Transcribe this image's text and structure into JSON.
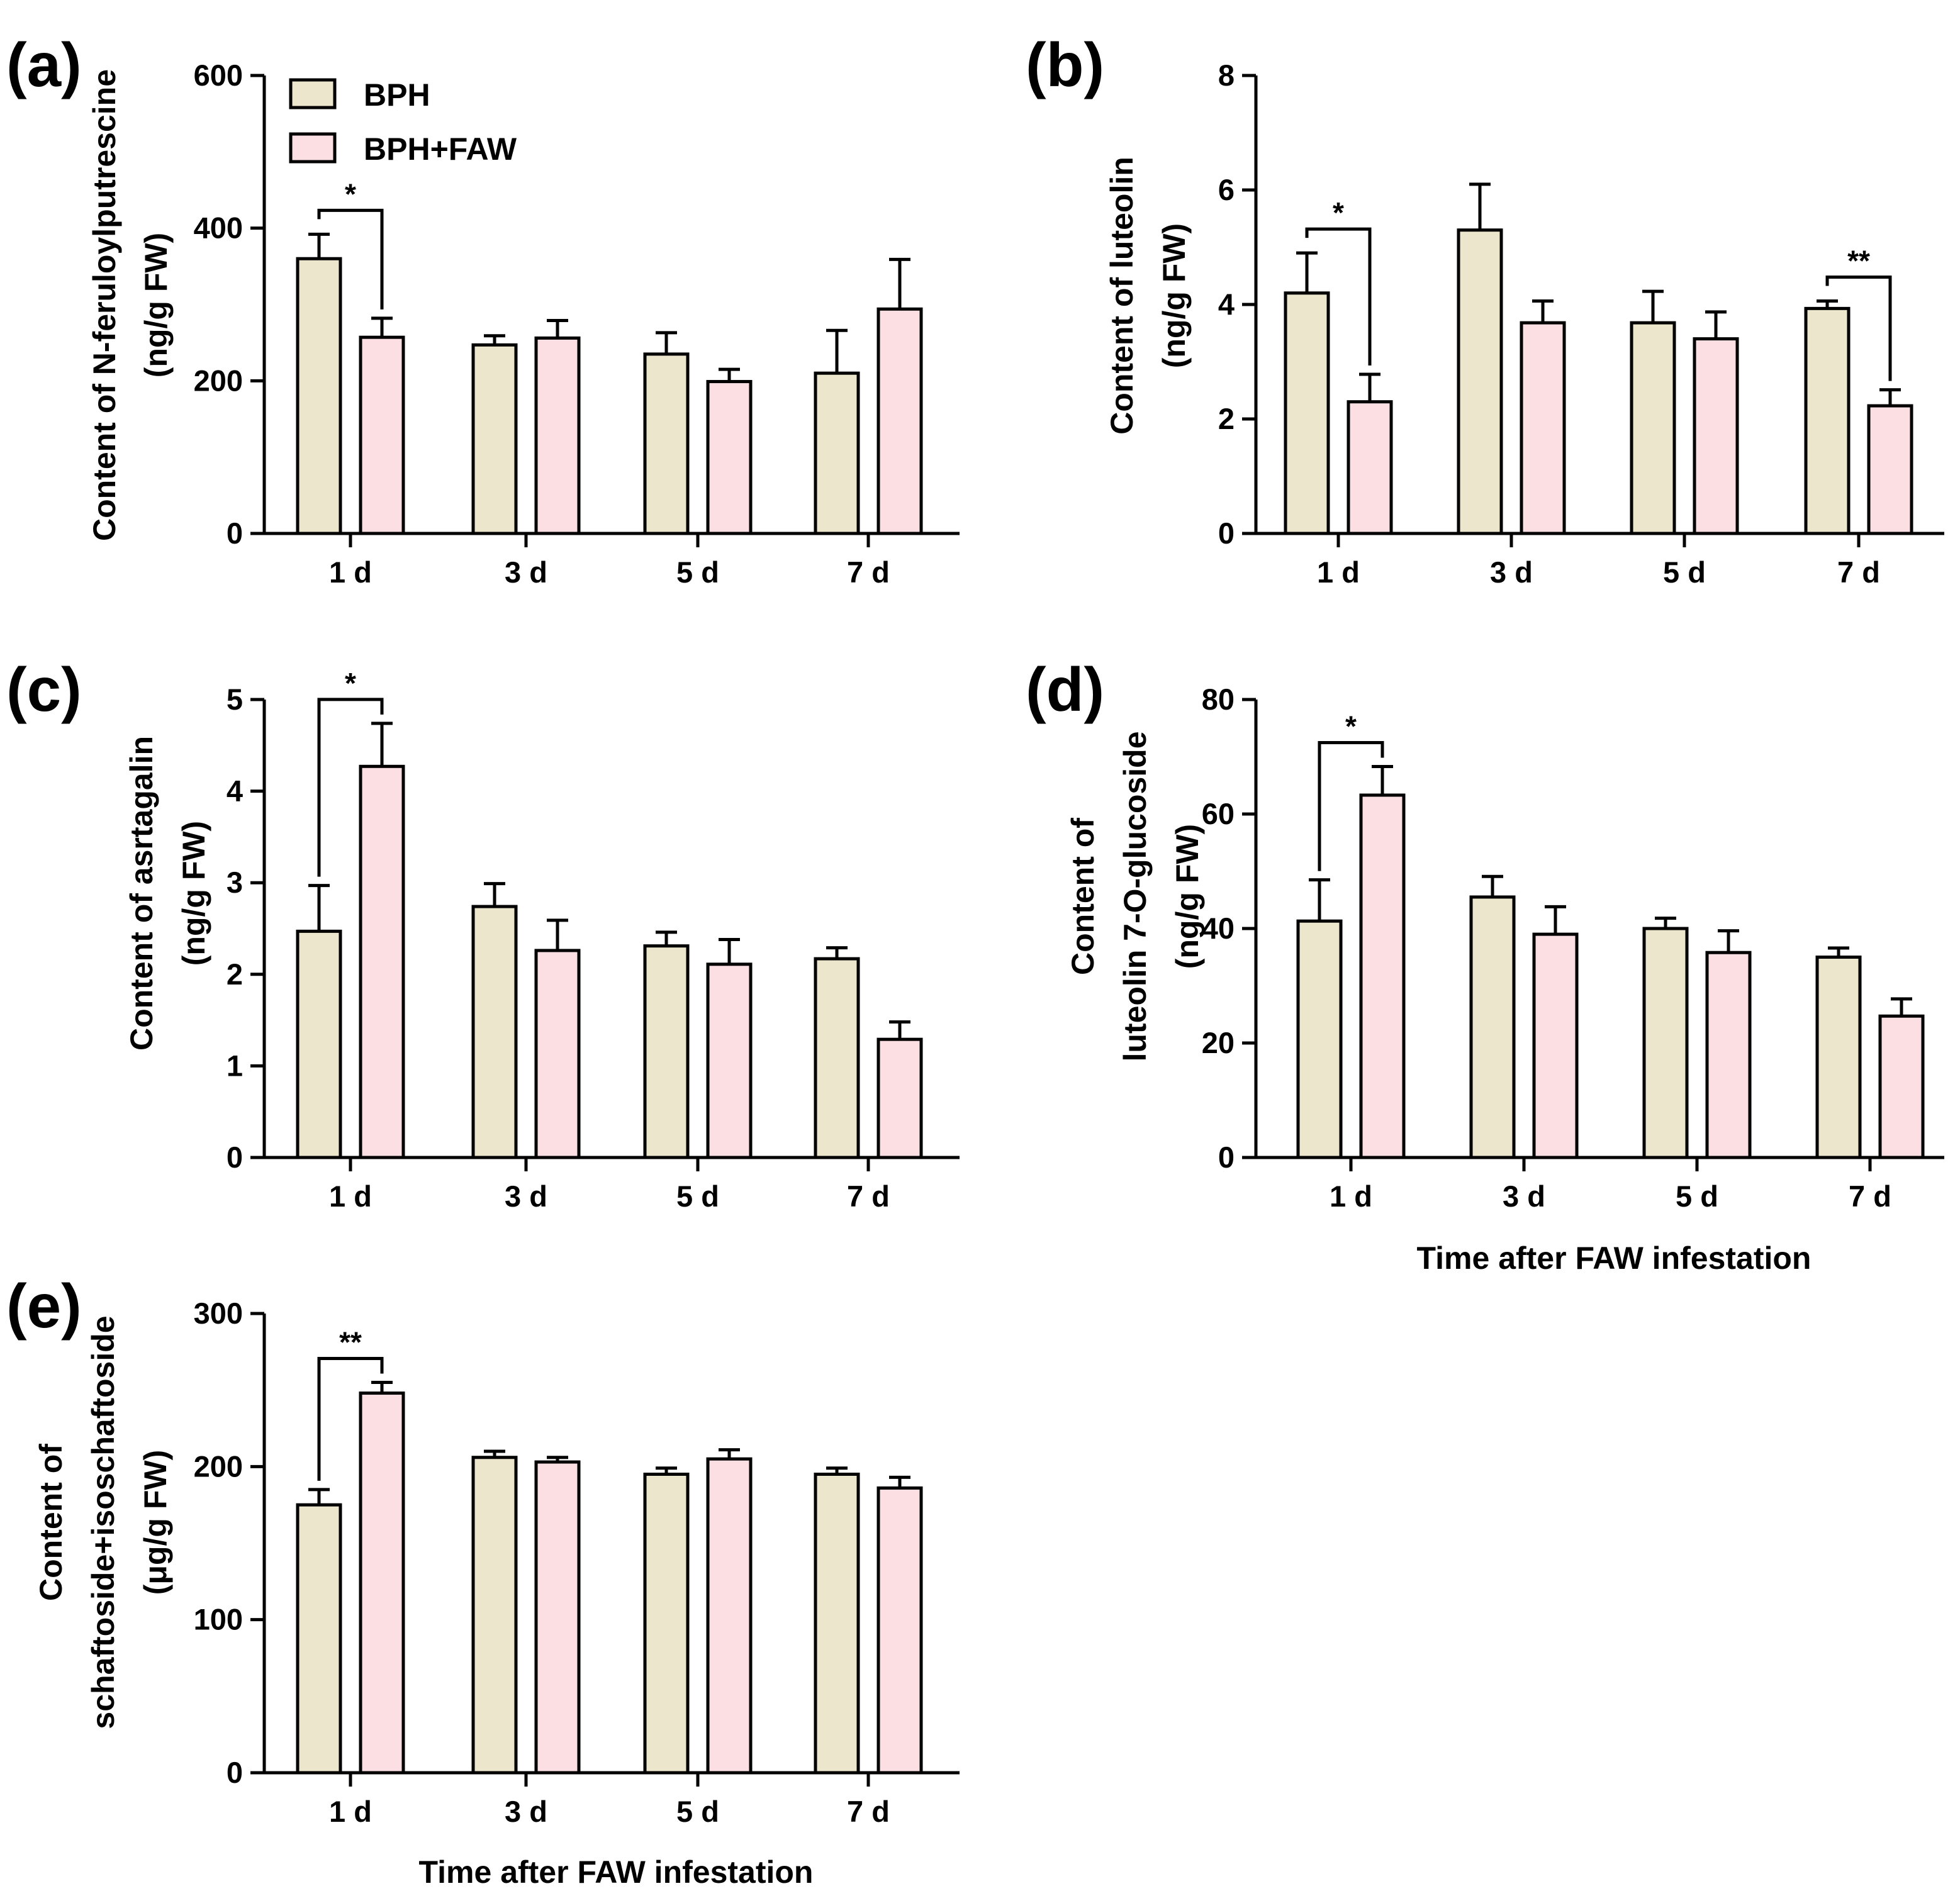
{
  "colors": {
    "BPH": "#ebe6cc",
    "BPH+FAW": "#fbdfe3",
    "stroke": "#000000"
  },
  "shared_xlabel": "Time after FAW infestation",
  "chart_data": [
    {
      "type": "bar",
      "panel": "(a)",
      "ylabel": [
        "Content of N-feruloylputrescine",
        "(ng/g FW)"
      ],
      "categories": [
        "1 d",
        "3 d",
        "5 d",
        "7 d"
      ],
      "ylim": [
        0,
        600
      ],
      "yticks": [
        0,
        200,
        400,
        600
      ],
      "legend": [
        "BPH",
        "BPH+FAW"
      ],
      "series": [
        {
          "name": "BPH",
          "values": [
            360,
            247,
            235,
            210
          ],
          "errors": [
            32,
            12,
            28,
            56
          ]
        },
        {
          "name": "BPH+FAW",
          "values": [
            257,
            256,
            199,
            294
          ],
          "errors": [
            25,
            23,
            16,
            65
          ]
        }
      ],
      "significance": [
        {
          "category": 0,
          "label": "*",
          "style": "down"
        }
      ]
    },
    {
      "type": "bar",
      "panel": "(b)",
      "ylabel": [
        "Content of luteolin",
        "(ng/g FW)"
      ],
      "categories": [
        "1 d",
        "3 d",
        "5 d",
        "7 d"
      ],
      "ylim": [
        0,
        8
      ],
      "yticks": [
        0,
        2,
        4,
        6,
        8
      ],
      "series": [
        {
          "name": "BPH",
          "values": [
            4.2,
            5.3,
            3.68,
            3.93
          ],
          "errors": [
            0.7,
            0.8,
            0.55,
            0.13
          ]
        },
        {
          "name": "BPH+FAW",
          "values": [
            2.3,
            3.68,
            3.4,
            2.23
          ],
          "errors": [
            0.48,
            0.38,
            0.47,
            0.28
          ]
        }
      ],
      "significance": [
        {
          "category": 0,
          "label": "*",
          "style": "down"
        },
        {
          "category": 3,
          "label": "**",
          "style": "down"
        }
      ]
    },
    {
      "type": "bar",
      "panel": "(c)",
      "ylabel": [
        "Content of asrtagalin",
        "(ng/g FW)"
      ],
      "categories": [
        "1 d",
        "3 d",
        "5 d",
        "7 d"
      ],
      "ylim": [
        0,
        5
      ],
      "yticks": [
        0,
        1,
        2,
        3,
        4,
        5
      ],
      "series": [
        {
          "name": "BPH",
          "values": [
            2.47,
            2.74,
            2.31,
            2.17
          ],
          "errors": [
            0.5,
            0.25,
            0.15,
            0.12
          ]
        },
        {
          "name": "BPH+FAW",
          "values": [
            4.27,
            2.26,
            2.11,
            1.29
          ],
          "errors": [
            0.47,
            0.33,
            0.27,
            0.19
          ]
        }
      ],
      "significance": [
        {
          "category": 0,
          "label": "*",
          "style": "both"
        }
      ]
    },
    {
      "type": "bar",
      "panel": "(d)",
      "ylabel": [
        "Content of",
        "luteolin 7-O-glucoside",
        "(ng/g FW)"
      ],
      "categories": [
        "1 d",
        "3 d",
        "5 d",
        "7 d"
      ],
      "ylim": [
        0,
        80
      ],
      "yticks": [
        0,
        20,
        40,
        60,
        80
      ],
      "series": [
        {
          "name": "BPH",
          "values": [
            41.3,
            45.5,
            40,
            35
          ],
          "errors": [
            7.2,
            3.6,
            1.8,
            1.6
          ]
        },
        {
          "name": "BPH+FAW",
          "values": [
            63.3,
            39,
            35.8,
            24.7
          ],
          "errors": [
            5,
            4.8,
            3.8,
            3
          ]
        }
      ],
      "significance": [
        {
          "category": 0,
          "label": "*",
          "style": "both"
        }
      ]
    },
    {
      "type": "bar",
      "panel": "(e)",
      "ylabel": [
        "Content of",
        "schaftoside+isoschaftoside",
        "(μg/g FW)"
      ],
      "categories": [
        "1 d",
        "3 d",
        "5 d",
        "7 d"
      ],
      "ylim": [
        0,
        300
      ],
      "yticks": [
        0,
        100,
        200,
        300
      ],
      "series": [
        {
          "name": "BPH",
          "values": [
            175,
            206,
            195,
            195
          ],
          "errors": [
            10,
            4,
            4,
            4
          ]
        },
        {
          "name": "BPH+FAW",
          "values": [
            248,
            203,
            205,
            186
          ],
          "errors": [
            7,
            3,
            6,
            7
          ]
        }
      ],
      "significance": [
        {
          "category": 0,
          "label": "**",
          "style": "both"
        }
      ]
    }
  ]
}
